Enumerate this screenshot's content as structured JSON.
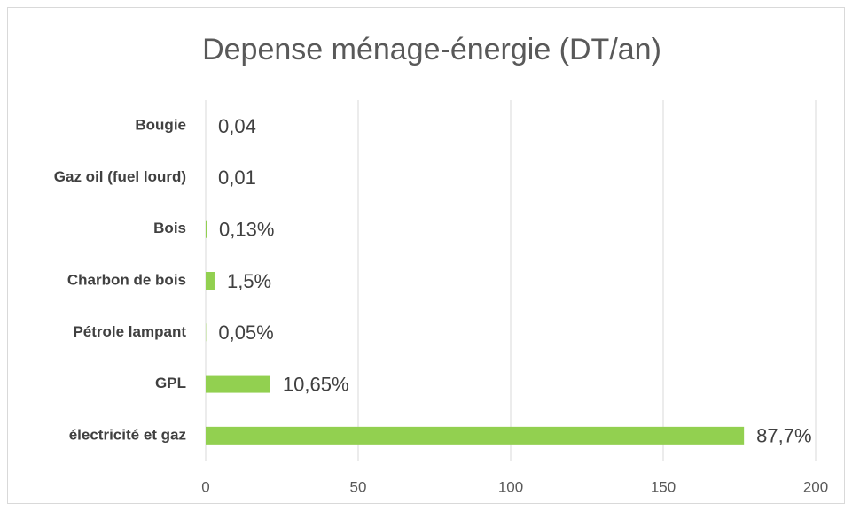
{
  "chart_data": {
    "type": "bar",
    "orientation": "horizontal",
    "title": "Depense ménage-énergie (DT/an)",
    "categories": [
      "Bougie",
      "Gaz oil (fuel lourd)",
      "Bois",
      "Charbon de bois",
      "Pétrole lampant",
      "GPL",
      "électricité et gaz"
    ],
    "values": [
      0,
      0,
      0.3,
      2.9,
      0.1,
      21.2,
      176.5
    ],
    "value_labels": [
      "0,04",
      "0,01",
      "0,13%",
      "1,5%",
      "0,05%",
      "10,65%",
      "87,7%"
    ],
    "color": "#92d050",
    "xlim": [
      0,
      200
    ],
    "xticks": [
      0,
      50,
      100,
      150,
      200
    ],
    "grid": true
  }
}
